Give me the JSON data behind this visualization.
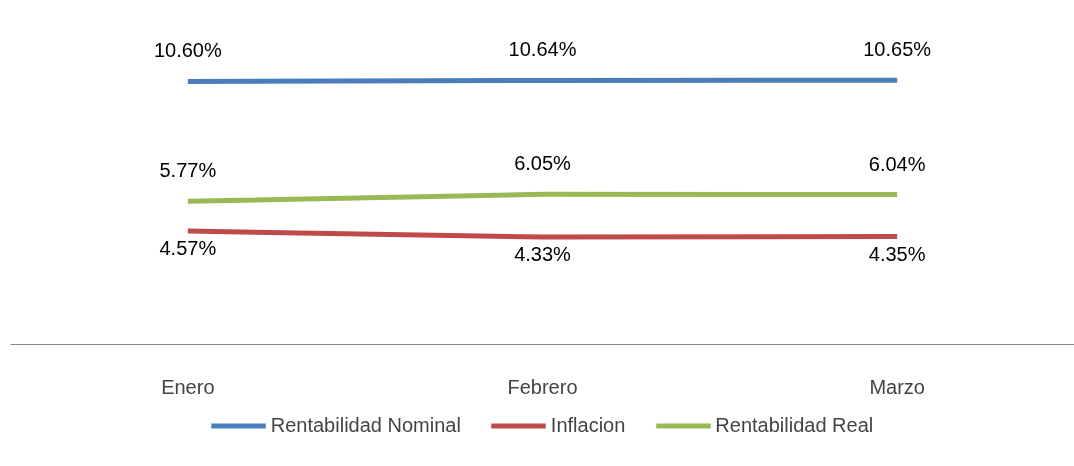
{
  "chart_data": {
    "type": "line",
    "categories": [
      "Enero",
      "Febrero",
      "Marzo"
    ],
    "data_labels": true,
    "legend": "bottom",
    "grid": false,
    "marker": "none",
    "line_style": "solid",
    "tick_labels": "x",
    "series": [
      {
        "name": "Rentabilidad Nominal",
        "color": "#4a7ebb",
        "values": [
          10.6,
          10.64,
          10.65
        ],
        "value_labels": [
          "10.60%",
          "10.64%",
          "10.65%"
        ]
      },
      {
        "name": "Inflacion",
        "color": "#be4b48",
        "values": [
          4.57,
          4.33,
          4.35
        ],
        "value_labels": [
          "4.57%",
          "4.33%",
          "4.35%"
        ]
      },
      {
        "name": "Rentabilidad Real",
        "color": "#98b954",
        "values": [
          5.77,
          6.05,
          6.04
        ],
        "value_labels": [
          "5.77%",
          "6.05%",
          "6.04%"
        ]
      }
    ]
  }
}
